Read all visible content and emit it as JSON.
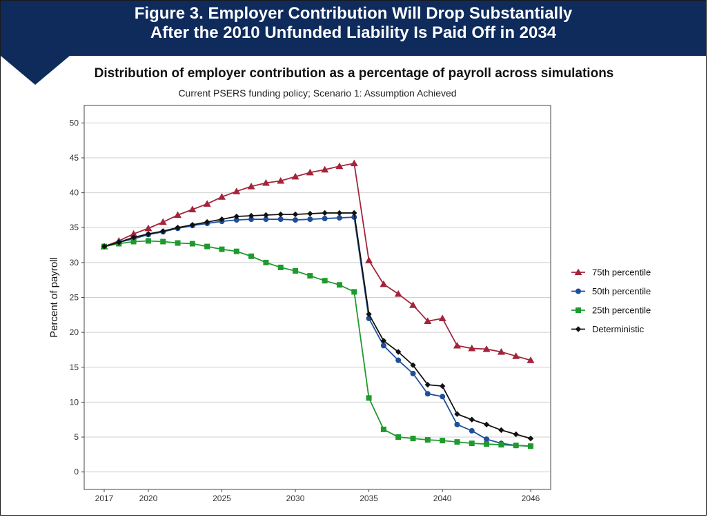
{
  "banner": {
    "title_line1": "Figure 3. Employer Contribution Will Drop Substantially",
    "title_line2": "After the 2010 Unfunded Liability Is Paid Off in 2034"
  },
  "chart_data": {
    "type": "line",
    "title": "Distribution of employer contribution as a percentage of payroll across simulations",
    "subtitle": "Current PSERS funding policy; Scenario 1: Assumption Achieved",
    "xlabel": "",
    "ylabel": "Percent of payroll",
    "xlim": [
      2017,
      2046
    ],
    "ylim": [
      -2.5,
      52.5
    ],
    "x_ticks": [
      2017,
      2020,
      2025,
      2030,
      2035,
      2040,
      2046
    ],
    "y_ticks": [
      0,
      5,
      10,
      15,
      20,
      25,
      30,
      35,
      40,
      45,
      50
    ],
    "grid": "horizontal",
    "legend_position": "right",
    "x": [
      2017,
      2018,
      2019,
      2020,
      2021,
      2022,
      2023,
      2024,
      2025,
      2026,
      2027,
      2028,
      2029,
      2030,
      2031,
      2032,
      2033,
      2034,
      2035,
      2036,
      2037,
      2038,
      2039,
      2040,
      2041,
      2042,
      2043,
      2044,
      2045,
      2046
    ],
    "series": [
      {
        "name": "75th percentile",
        "color": "#a3243b",
        "marker": "triangle",
        "values": [
          32.3,
          33.1,
          34.1,
          34.9,
          35.8,
          36.8,
          37.6,
          38.4,
          39.4,
          40.2,
          40.9,
          41.4,
          41.7,
          42.3,
          42.9,
          43.3,
          43.8,
          44.2,
          30.3,
          26.9,
          25.5,
          23.9,
          21.6,
          22.0,
          18.1,
          17.7,
          17.6,
          17.2,
          16.6,
          16.0
        ]
      },
      {
        "name": "50th percentile",
        "color": "#1f4e9c",
        "marker": "circle",
        "values": [
          32.3,
          32.9,
          33.4,
          34.0,
          34.4,
          34.9,
          35.3,
          35.6,
          35.9,
          36.1,
          36.2,
          36.2,
          36.2,
          36.1,
          36.2,
          36.3,
          36.4,
          36.5,
          22.0,
          18.1,
          16.0,
          14.1,
          11.2,
          10.8,
          6.8,
          5.9,
          4.7,
          4.1,
          3.8,
          3.7
        ]
      },
      {
        "name": "25th percentile",
        "color": "#1f9a2e",
        "marker": "square",
        "values": [
          32.3,
          32.7,
          33.0,
          33.1,
          33.0,
          32.8,
          32.7,
          32.3,
          31.9,
          31.6,
          30.9,
          30.0,
          29.3,
          28.8,
          28.1,
          27.4,
          26.8,
          25.8,
          10.6,
          6.1,
          5.0,
          4.8,
          4.6,
          4.5,
          4.3,
          4.1,
          4.0,
          3.9,
          3.8,
          3.7
        ]
      },
      {
        "name": "Deterministic",
        "color": "#111111",
        "marker": "diamond",
        "values": [
          32.3,
          32.9,
          33.6,
          34.1,
          34.5,
          35.0,
          35.4,
          35.8,
          36.2,
          36.6,
          36.7,
          36.8,
          36.9,
          36.9,
          37.0,
          37.1,
          37.1,
          37.1,
          22.6,
          18.8,
          17.2,
          15.3,
          12.5,
          12.3,
          8.3,
          7.5,
          6.8,
          6.0,
          5.4,
          4.8
        ]
      }
    ]
  }
}
